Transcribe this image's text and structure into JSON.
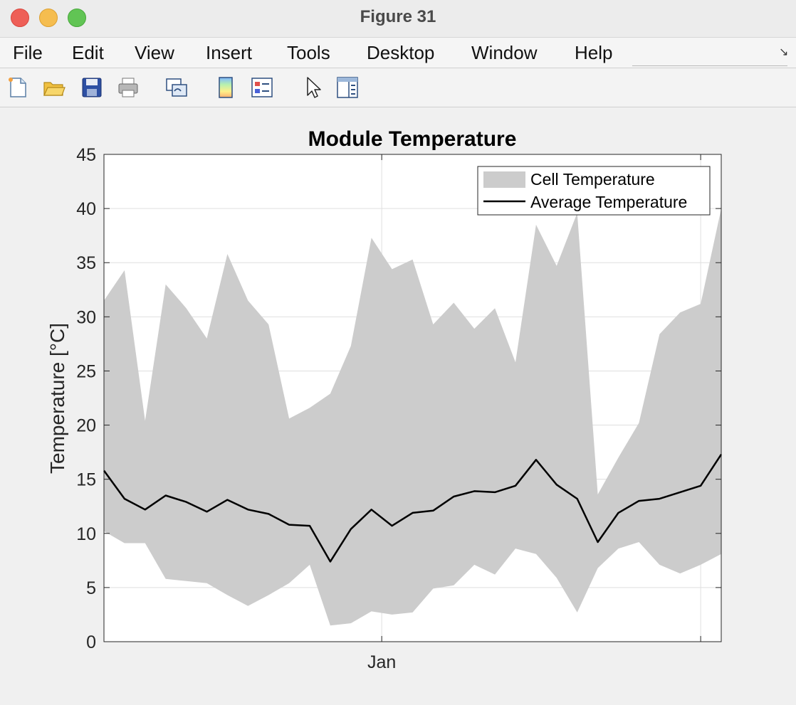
{
  "window": {
    "title": "Figure 31",
    "traffic_lights": {
      "close": "#ee5f57",
      "minimize": "#f5bd4f",
      "maximize": "#61c454"
    }
  },
  "menu": {
    "items": [
      "File",
      "Edit",
      "View",
      "Insert",
      "Tools",
      "Desktop",
      "Window",
      "Help"
    ]
  },
  "toolbar": {
    "icons": [
      "new-figure-icon",
      "open-file-icon",
      "save-icon",
      "print-icon",
      "link-plot-icon",
      "colorbar-icon",
      "legend-icon",
      "pointer-icon",
      "property-inspector-icon"
    ]
  },
  "chart_data": {
    "type": "area",
    "title": "Module Temperature",
    "ylabel": "Temperature [°C]",
    "xlabel": "",
    "ylim": [
      0,
      45
    ],
    "yticks": [
      0,
      5,
      10,
      15,
      20,
      25,
      30,
      35,
      40,
      45
    ],
    "x": [
      0,
      1,
      2,
      3,
      4,
      5,
      6,
      7,
      8,
      9,
      10,
      11,
      12,
      13,
      14,
      15,
      16,
      17,
      18,
      19,
      20,
      21,
      22,
      23,
      24,
      25,
      26,
      27,
      28,
      29,
      30
    ],
    "xlim": [
      0,
      30
    ],
    "xticks": [
      {
        "x": 13.5,
        "label": "Jan"
      },
      {
        "x": 29,
        "label": ""
      }
    ],
    "grid": true,
    "legend_position": "top-right",
    "series": [
      {
        "name": "Cell Temperature",
        "kind": "band",
        "color": "#cccccc",
        "upper": [
          31.5,
          34.3,
          20.4,
          33.0,
          30.8,
          28.0,
          35.8,
          31.5,
          29.3,
          20.6,
          21.6,
          22.9,
          27.3,
          37.3,
          34.4,
          35.3,
          29.3,
          31.3,
          28.9,
          30.8,
          25.8,
          38.5,
          34.7,
          39.6,
          13.6,
          17.0,
          20.2,
          28.4,
          30.4,
          31.2,
          40.0
        ],
        "lower": [
          10.2,
          9.1,
          9.1,
          5.8,
          5.6,
          5.4,
          4.3,
          3.3,
          4.3,
          5.4,
          7.1,
          1.5,
          1.7,
          2.8,
          2.5,
          2.7,
          4.9,
          5.2,
          7.1,
          6.2,
          8.6,
          8.1,
          5.9,
          2.7,
          6.8,
          8.6,
          9.2,
          7.1,
          6.3,
          7.1,
          8.1
        ]
      },
      {
        "name": "Average Temperature",
        "kind": "line",
        "color": "#000000",
        "values": [
          15.8,
          13.2,
          12.2,
          13.5,
          12.9,
          12.0,
          13.1,
          12.2,
          11.8,
          10.8,
          10.7,
          7.4,
          10.4,
          12.2,
          10.7,
          11.9,
          12.1,
          13.4,
          13.9,
          13.8,
          14.4,
          16.8,
          14.5,
          13.2,
          9.2,
          11.9,
          13.0,
          13.2,
          13.8,
          14.4,
          17.3
        ]
      }
    ]
  }
}
